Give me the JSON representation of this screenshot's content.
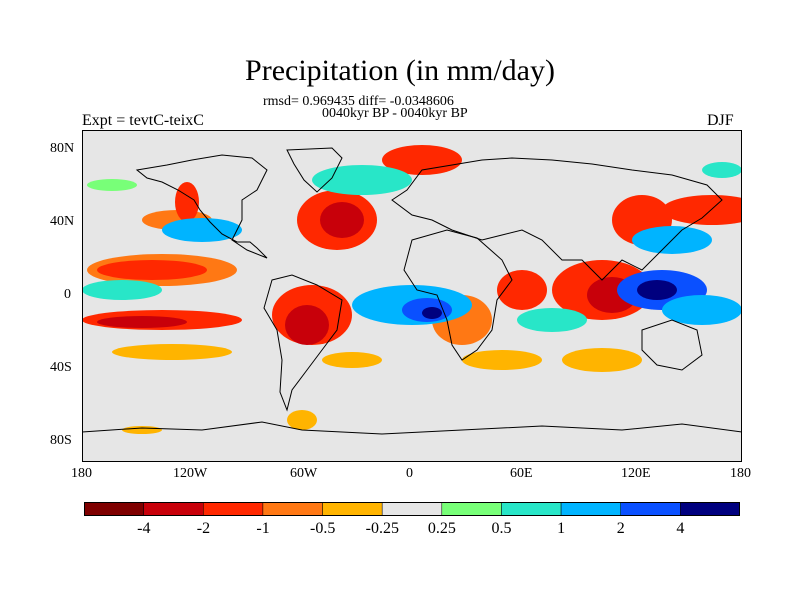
{
  "title": "Precipitation (in mm/day)",
  "stats": "rmsd= 0.969435 diff= -0.0348606",
  "period": "0040kyr BP - 0040kyr BP",
  "left_label": "Expt = tevtC-teixC",
  "right_label": "DJF",
  "lat_ticks": [
    "80N",
    "40N",
    "0",
    "40S",
    "80S"
  ],
  "lon_ticks": [
    "180",
    "120W",
    "60W",
    "0",
    "60E",
    "120E",
    "180"
  ],
  "colorbar": {
    "labels": [
      "-4",
      "-2",
      "-1",
      "-0.5",
      "-0.25",
      "0.25",
      "0.5",
      "1",
      "2",
      "4"
    ],
    "colors": [
      "#7f0000",
      "#c8000a",
      "#ff2800",
      "#ff7814",
      "#ffb400",
      "#e6e6e6",
      "#78ff78",
      "#28e6c8",
      "#00b4ff",
      "#0a50ff",
      "#00007f"
    ]
  },
  "map_background": "#e6e6e6"
}
